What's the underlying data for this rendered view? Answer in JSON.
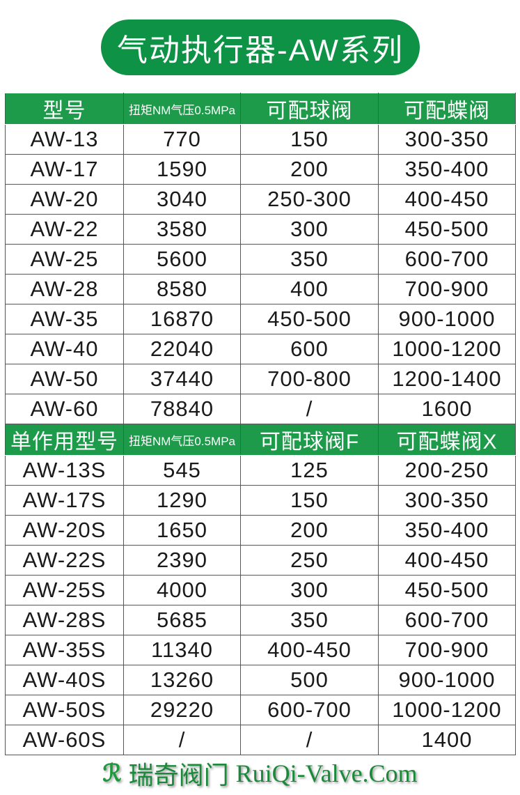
{
  "title": "气动执行器-AW系列",
  "table1": {
    "headers": [
      "型号",
      "扭矩NM气压0.5MPa",
      "可配球阀",
      "可配蝶阀"
    ],
    "rows": [
      [
        "AW-13",
        "770",
        "150",
        "300-350"
      ],
      [
        "AW-17",
        "1590",
        "200",
        "350-400"
      ],
      [
        "AW-20",
        "3040",
        "250-300",
        "400-450"
      ],
      [
        "AW-22",
        "3580",
        "300",
        "450-500"
      ],
      [
        "AW-25",
        "5600",
        "350",
        "600-700"
      ],
      [
        "AW-28",
        "8580",
        "400",
        "700-900"
      ],
      [
        "AW-35",
        "16870",
        "450-500",
        "900-1000"
      ],
      [
        "AW-40",
        "22040",
        "600",
        "1000-1200"
      ],
      [
        "AW-50",
        "37440",
        "700-800",
        "1200-1400"
      ],
      [
        "AW-60",
        "78840",
        "/",
        "1600"
      ]
    ]
  },
  "table2": {
    "headers": [
      "单作用型号",
      "扭矩NM气压0.5MPa",
      "可配球阀F",
      "可配蝶阀X"
    ],
    "rows": [
      [
        "AW-13S",
        "545",
        "125",
        "200-250"
      ],
      [
        "AW-17S",
        "1290",
        "150",
        "300-350"
      ],
      [
        "AW-20S",
        "1650",
        "200",
        "350-400"
      ],
      [
        "AW-22S",
        "2390",
        "250",
        "400-450"
      ],
      [
        "AW-25S",
        "4000",
        "300",
        "450-500"
      ],
      [
        "AW-28S",
        "5685",
        "350",
        "600-700"
      ],
      [
        "AW-35S",
        "11340",
        "400-450",
        "700-900"
      ],
      [
        "AW-40S",
        "13260",
        "500",
        "900-1000"
      ],
      [
        "AW-50S",
        "29220",
        "600-700",
        "1000-1200"
      ],
      [
        "AW-60S",
        "/",
        "/",
        "1400"
      ]
    ]
  },
  "footer": {
    "logo_mark": "RQ",
    "brand": "瑞奇阀门",
    "site": "RuiQi-Valve.Com"
  },
  "colors": {
    "green": "#0e9246",
    "header_green": "#1d9a4a"
  }
}
